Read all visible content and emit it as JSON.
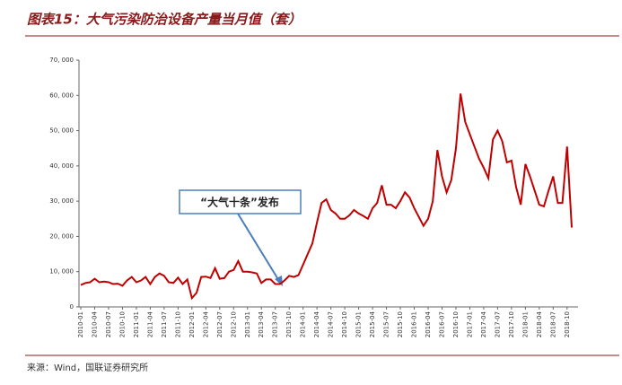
{
  "chart_data": {
    "type": "line",
    "title": "图表15：大气污染防治设备产量当月值（套）",
    "source": "来源：Wind，国联证券研究所",
    "annotation": "“大气十条”发布",
    "color": "#c00000",
    "categories": [
      "2010-01",
      null,
      null,
      "2010-04",
      null,
      null,
      "2010-07",
      null,
      null,
      "2010-10",
      null,
      null,
      "2011-01",
      null,
      null,
      "2011-04",
      null,
      null,
      "2011-07",
      null,
      null,
      "2011-10",
      null,
      null,
      "2012-01",
      null,
      null,
      "2012-04",
      null,
      null,
      "2012-07",
      null,
      null,
      "2012-10",
      null,
      null,
      "2013-01",
      null,
      null,
      "2013-04",
      null,
      null,
      "2013-07",
      null,
      null,
      "2013-10",
      null,
      null,
      "2014-01",
      null,
      null,
      "2014-04",
      null,
      null,
      "2014-07",
      null,
      null,
      "2014-10",
      null,
      null,
      "2015-01",
      null,
      null,
      "2015-04",
      null,
      null,
      "2015-07",
      null,
      null,
      "2015-10",
      null,
      null,
      "2016-01",
      null,
      null,
      "2016-04",
      null,
      null,
      "2016-07",
      null,
      null,
      "2016-10",
      null,
      null,
      "2017-01",
      null,
      null,
      "2017-04",
      null,
      null,
      "2017-07",
      null,
      null,
      "2017-10",
      null,
      null,
      "2018-01",
      null,
      null,
      "2018-04",
      null,
      null,
      "2018-07",
      null,
      null,
      "2018-10",
      null
    ],
    "values": [
      6200,
      6800,
      7000,
      8000,
      7000,
      7200,
      7000,
      6500,
      6600,
      6000,
      7500,
      8500,
      7000,
      7500,
      8500,
      6500,
      8500,
      9500,
      8800,
      7000,
      6800,
      8300,
      6500,
      7800,
      2500,
      4000,
      8500,
      8600,
      8200,
      11000,
      8000,
      8200,
      10000,
      10500,
      13000,
      10000,
      10000,
      9800,
      9500,
      6800,
      7800,
      7800,
      6500,
      6500,
      7500,
      8800,
      8500,
      9000,
      12000,
      15000,
      18000,
      24000,
      29500,
      30500,
      27500,
      26500,
      25000,
      25000,
      26000,
      27500,
      26500,
      25800,
      25000,
      28000,
      29500,
      34500,
      29000,
      29000,
      28000,
      30000,
      32500,
      31000,
      28000,
      25500,
      23000,
      25000,
      30000,
      44500,
      37000,
      32500,
      36000,
      45000,
      60500,
      52500,
      49000,
      45500,
      42000,
      39500,
      36500,
      47500,
      50000,
      47000,
      41000,
      41500,
      34000,
      29000,
      40500,
      37000,
      33000,
      29000,
      28500,
      33000,
      37000,
      29500,
      29500,
      45500,
      22500
    ],
    "ylim": [
      0,
      70000
    ],
    "yticks": [
      0,
      {
        "value": 10000,
        "label": "10, 000"
      },
      {
        "value": 20000,
        "label": "20, 000"
      },
      {
        "value": 30000,
        "label": "30, 000"
      },
      {
        "value": 40000,
        "label": "40, 000"
      },
      {
        "value": 50000,
        "label": "50, 000"
      },
      {
        "value": 60000,
        "label": "60, 000"
      },
      {
        "value": 70000,
        "label": "70, 000"
      }
    ]
  }
}
